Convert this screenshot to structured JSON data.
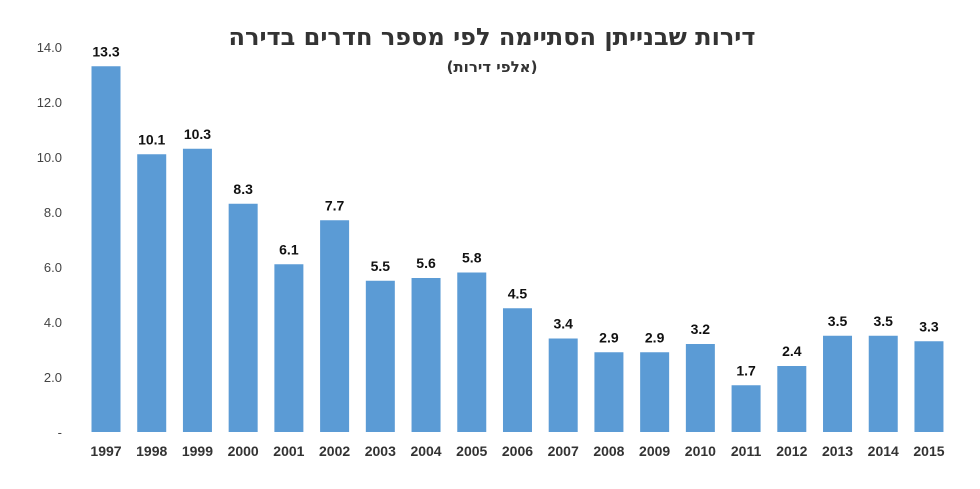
{
  "chart_data": {
    "type": "bar",
    "title": "דירות שבנייתן הסתיימה לפי מספר חדרים בדירה",
    "subtitle": "(אלפי דירות)",
    "xlabel": "",
    "ylabel": "",
    "ylim": [
      0,
      14
    ],
    "yticks": [
      "-",
      "2.0",
      "4.0",
      "6.0",
      "8.0",
      "10.0",
      "12.0",
      "14.0"
    ],
    "grid": false,
    "color": "#5b9bd5",
    "categories": [
      "1997",
      "1998",
      "1999",
      "2000",
      "2001",
      "2002",
      "2003",
      "2004",
      "2005",
      "2006",
      "2007",
      "2008",
      "2009",
      "2010",
      "2011",
      "2012",
      "2013",
      "2014",
      "2015"
    ],
    "values": [
      13.3,
      10.1,
      10.3,
      8.3,
      6.1,
      7.7,
      5.5,
      5.6,
      5.8,
      4.5,
      3.4,
      2.9,
      2.9,
      3.2,
      1.7,
      2.4,
      3.5,
      3.5,
      3.3
    ],
    "labels": [
      "13.3",
      "10.1",
      "10.3",
      "8.3",
      "6.1",
      "7.7",
      "5.5",
      "5.6",
      "5.8",
      "4.5",
      "3.4",
      "2.9",
      "2.9",
      "3.2",
      "1.7",
      "2.4",
      "3.5",
      "3.5",
      "3.3"
    ]
  }
}
